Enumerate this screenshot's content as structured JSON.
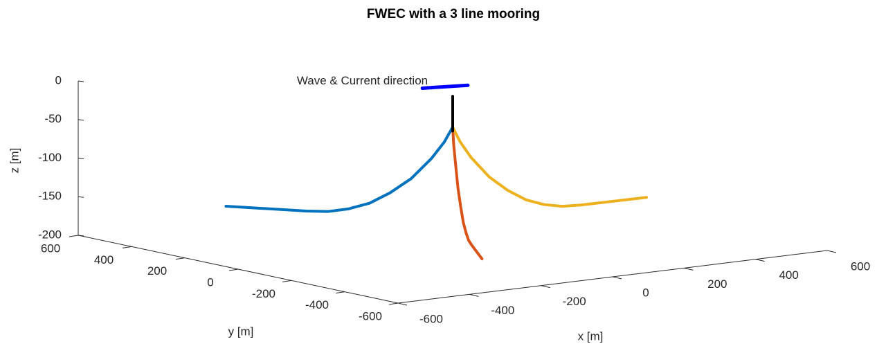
{
  "chart_data": {
    "type": "line3d",
    "title": "FWEC with a 3 line mooring",
    "xlabel": "x [m]",
    "ylabel": "y [m]",
    "zlabel": "z [m]",
    "xlim": [
      -600,
      600
    ],
    "ylim": [
      -600,
      600
    ],
    "zlim": [
      -200,
      0
    ],
    "xticks": [
      -600,
      -400,
      -200,
      0,
      200,
      400,
      600
    ],
    "yticks": [
      -600,
      -400,
      -200,
      0,
      200,
      400,
      600
    ],
    "zticks": [
      -200,
      -150,
      -100,
      -50,
      0
    ],
    "series": [
      {
        "color": "#0072bd",
        "x": [
          0,
          -11,
          -27,
          -53,
          -80,
          -106,
          -133,
          -159,
          -186,
          -289
        ],
        "y": [
          0,
          17,
          43,
          85,
          128,
          170,
          213,
          255,
          298,
          463
        ],
        "z": [
          -50,
          -70,
          -92,
          -120,
          -140,
          -155,
          -164,
          -169,
          -170,
          -170
        ]
      },
      {
        "color": "#d95319",
        "x": [
          0,
          -10,
          -25,
          -50,
          -75,
          -100,
          -125,
          -150,
          -175,
          -275
        ],
        "y": [
          0,
          -17,
          -44,
          -87,
          -131,
          -174,
          -218,
          -261,
          -305,
          -479
        ],
        "z": [
          -50,
          -70,
          -92,
          -120,
          -140,
          -155,
          -164,
          -169,
          -170,
          -170
        ]
      },
      {
        "color": "#edb120",
        "x": [
          0,
          20,
          50,
          100,
          150,
          200,
          250,
          300,
          350,
          530
        ],
        "y": [
          0,
          -1,
          -2,
          -3,
          -5,
          -6,
          -8,
          -9,
          -11,
          -16
        ],
        "z": [
          -50,
          -70,
          -92,
          -120,
          -140,
          -155,
          -164,
          -169,
          -170,
          -170
        ]
      }
    ],
    "spar": {
      "color": "#000000",
      "x": [
        0,
        0
      ],
      "y": [
        0,
        0
      ],
      "z": [
        -55,
        -10
      ]
    },
    "arrow": {
      "color": "#0000ff",
      "x": [
        -70,
        35
      ],
      "y": [
        20,
        -10
      ],
      "z": [
        3,
        3
      ]
    },
    "annotation": "Wave & Current direction"
  }
}
